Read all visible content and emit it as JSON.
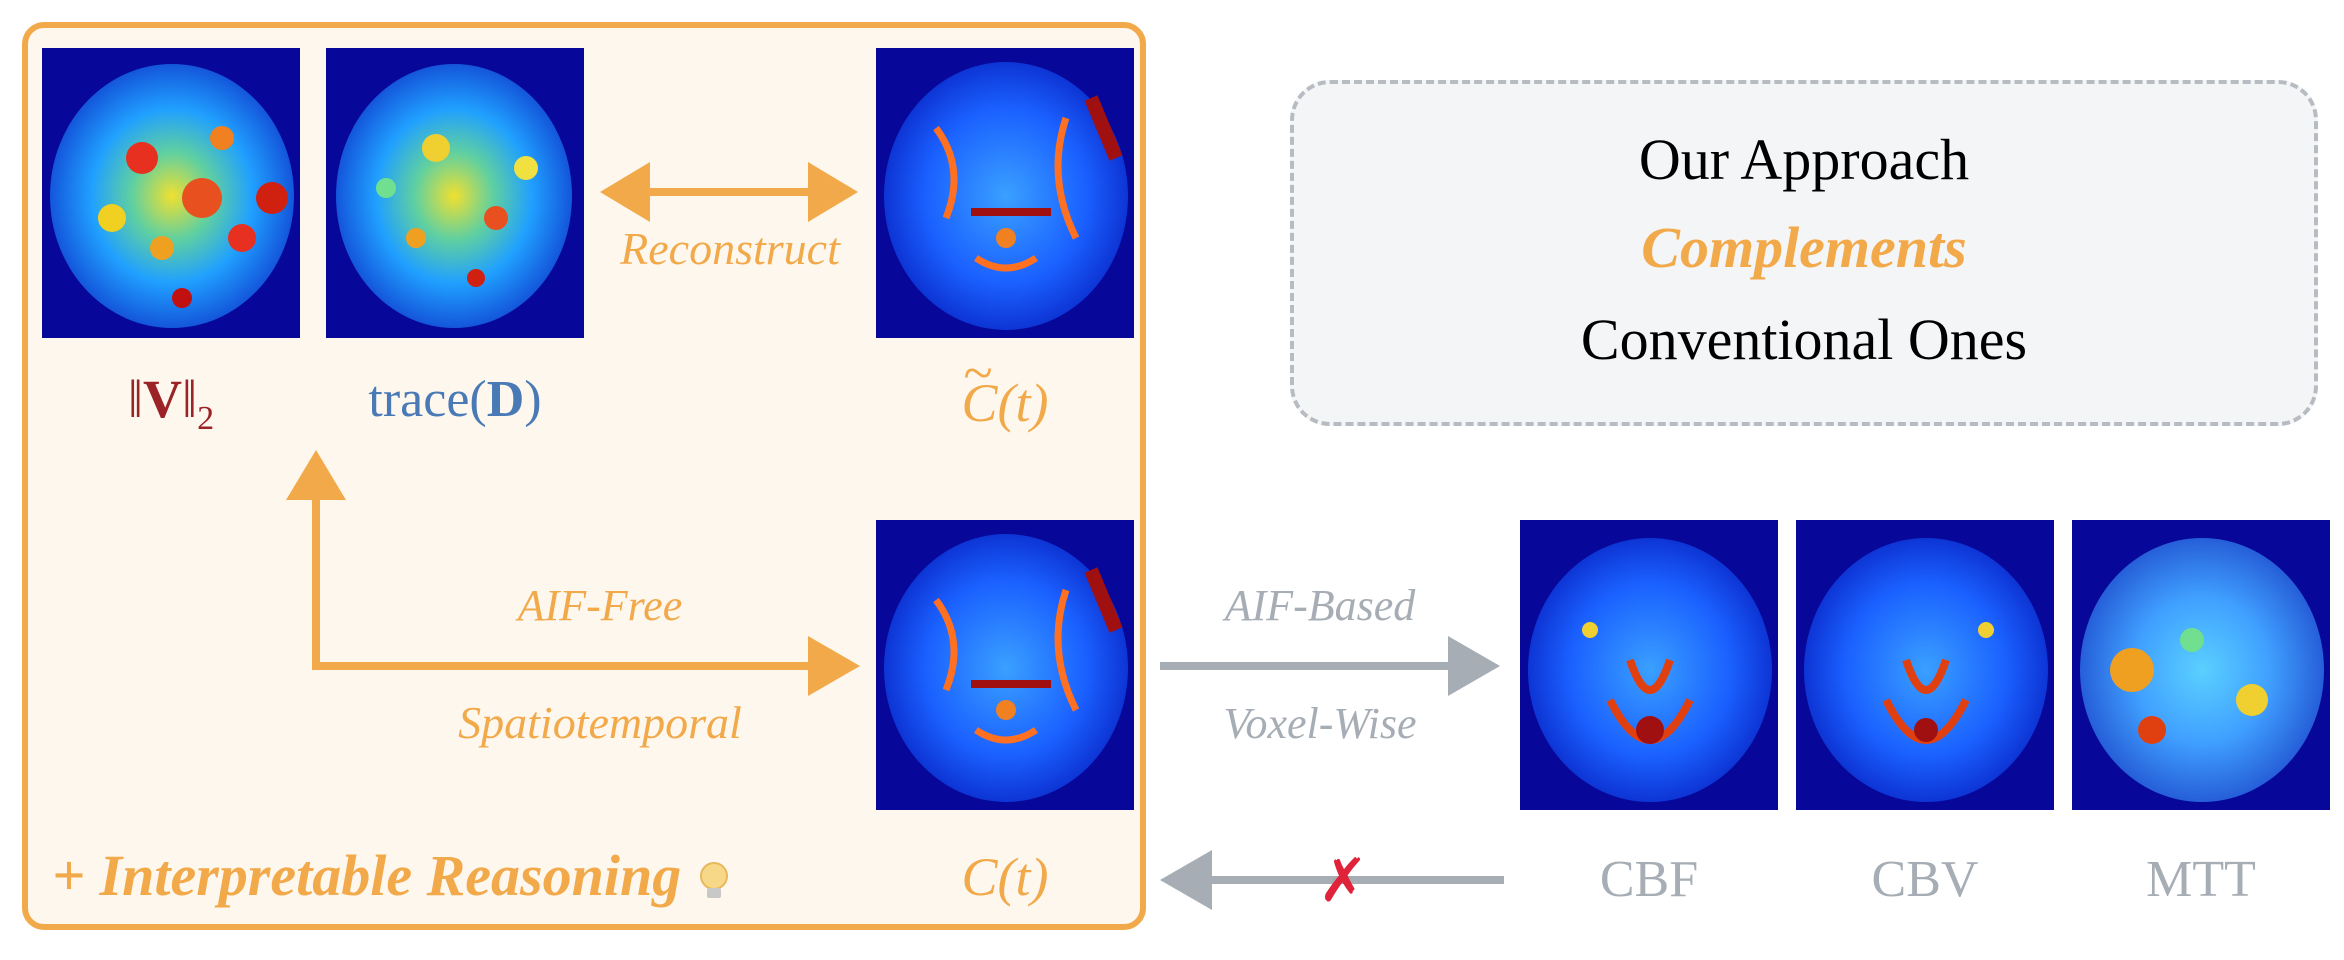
{
  "approach_box": {
    "line1": "Our Approach",
    "line2": "Complements",
    "line3": "Conventional Ones"
  },
  "labels": {
    "v_norm": {
      "bars": "‖",
      "bold": "V",
      "sub": "2"
    },
    "trace": {
      "pre": "trace(",
      "bold": "D",
      "post": ")"
    },
    "c_tilde": {
      "letter": "C",
      "tilde": "~",
      "arg": "(t)"
    },
    "c_t": {
      "letter": "C",
      "arg": "(t)"
    }
  },
  "arrows": {
    "reconstruct": "Reconstruct",
    "aif_free": "AIF-Free",
    "spatiotemporal": "Spatiotemporal",
    "aif_based": "AIF-Based",
    "voxel_wise": "Voxel-Wise",
    "cross_mark": "✗"
  },
  "footer": {
    "interpretable": "+ Interpretable Reasoning",
    "bulb_icon": "lightbulb-icon"
  },
  "maps": {
    "cbf": "CBF",
    "cbv": "CBV",
    "mtt": "MTT"
  },
  "colors": {
    "orange": "#f2a94a",
    "gray": "#a6adb4",
    "dark_red": "#9b2226",
    "blue": "#4a7ab5",
    "map_background": "#07079a"
  }
}
